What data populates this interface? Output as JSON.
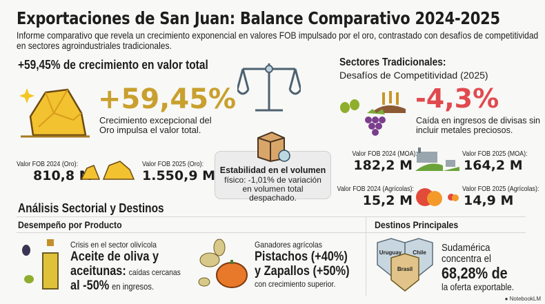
{
  "title": "Exportaciones de San Juan: Balance Comparativo 2024-2025",
  "subtitle": "Informe comparativo que revela un crecimiento exponencial en valores FOB impulsado por el oro, contrastado con desafíos de competitividad en sectores agroindustriales tradicionales.",
  "growth": {
    "heading": "+59,45% de crecimiento en valor total",
    "big": "+59,45%",
    "desc": "Crecimiento excepcional del Oro impulsa el valor total.",
    "fob2024_label": "Valor FOB 2024 (Oro):",
    "fob2024": "810,8 M",
    "fob2025_label": "Valor FOB 2025 (Oro):",
    "fob2025": "1.550,9 M",
    "icon": "gold-nugget-icon"
  },
  "stability": {
    "title": "Estabilidad en el volumen",
    "desc": "físico: -1,01% de variación en volumen total despachado.",
    "icons": [
      "scale-icon",
      "box-icon"
    ]
  },
  "traditional": {
    "heading": "Sectores Tradicionales:",
    "subheading": "Desafíos de Competitividad (2025)",
    "big": "-4,3%",
    "desc": "Caída en ingresos de divisas sin incluir metales preciosos.",
    "moa2024_label": "Valor FOB 2024 (MOA):",
    "moa2024": "182,2 M",
    "moa2025_label": "Valor FOB 2025 (MOA):",
    "moa2025": "164,2 M",
    "agr2024_label": "Valor FOB 2024 (Agrícolas):",
    "agr2024": "15,2 M",
    "agr2025_label": "Valor FOB 2025 (Agrícolas):",
    "agr2025": "14,9 M"
  },
  "analysis": {
    "heading": "Análisis Sectorial y Destinos",
    "product_heading": "Desempeño por Producto",
    "destinations_heading": "Destinos Principales",
    "olive": {
      "kicker": "Crisis en el sector olivícola",
      "bold1": "Aceite de oliva y",
      "bold2": "aceitunas:",
      "rest2": "caídas cercanas",
      "bold3": "al -50%",
      "rest3": "en ingresos."
    },
    "winners": {
      "kicker": "Ganadores agrícolas",
      "bold1": "Pistachos (+40%)",
      "bold2": "y Zapallos (+50%)",
      "rest": "con crecimiento superior."
    },
    "dest": {
      "shields": [
        "Uruguay",
        "Chile",
        "Brasil"
      ],
      "line1": "Sudamérica",
      "line2": "concentra el",
      "big": "68,28% de",
      "line3": "la oferta exportable."
    }
  },
  "footer": {
    "brand": "NotebookLM"
  },
  "colors": {
    "gold": "#c9a02e",
    "red": "#e04a4f",
    "background": "#f8f8f6"
  }
}
